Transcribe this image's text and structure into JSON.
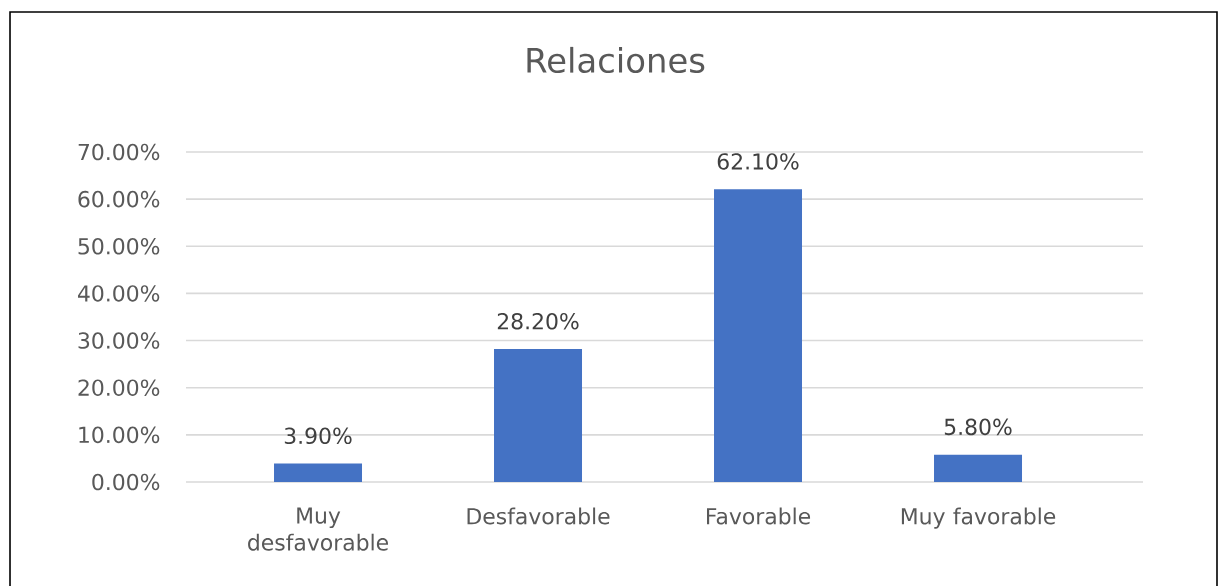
{
  "chart_data": {
    "type": "bar",
    "title": "Relaciones",
    "categories": [
      "Muy desfavorable",
      "Desfavorable",
      "Favorable",
      "Muy favorable"
    ],
    "values": [
      3.9,
      28.2,
      62.1,
      5.8
    ],
    "value_labels": [
      "3.90%",
      "28.20%",
      "62.10%",
      "5.80%"
    ],
    "color": "#4472c4",
    "ylim": [
      0,
      70
    ],
    "yticks": [
      {
        "value": 0,
        "label": "0.00%"
      },
      {
        "value": 10,
        "label": "10.00%"
      },
      {
        "value": 20,
        "label": "20.00%"
      },
      {
        "value": 30,
        "label": "30.00%"
      },
      {
        "value": 40,
        "label": "40.00%"
      },
      {
        "value": 50,
        "label": "50.00%"
      },
      {
        "value": 60,
        "label": "60.00%"
      },
      {
        "value": 70,
        "label": "70.00%"
      }
    ],
    "grid": "y"
  }
}
